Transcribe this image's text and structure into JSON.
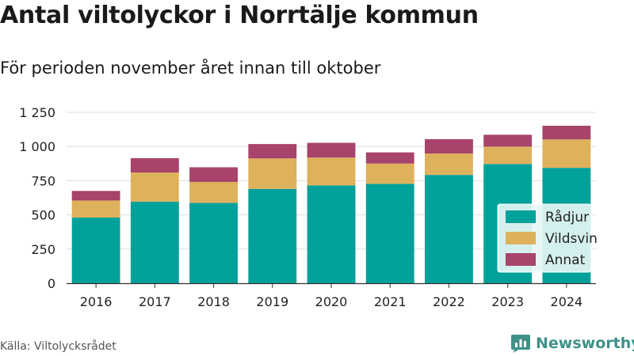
{
  "header": {
    "title": "Antal viltolyckor i Norrtälje kommun",
    "subtitle": "För perioden november året innan till oktober"
  },
  "footer": {
    "source": "Källa: Viltolycksrådet",
    "brand": "Newsworthy",
    "brand_icon": "newsworthy-logo-icon"
  },
  "chart_data": {
    "type": "bar",
    "stacked": true,
    "title": "Antal viltolyckor i Norrtälje kommun",
    "subtitle": "För perioden november året innan till oktober",
    "categories": [
      "2016",
      "2017",
      "2018",
      "2019",
      "2020",
      "2021",
      "2022",
      "2023",
      "2024"
    ],
    "series": [
      {
        "name": "Rådjur",
        "color": "#00a19a",
        "values": [
          480,
          597,
          588,
          690,
          715,
          727,
          792,
          872,
          844
        ]
      },
      {
        "name": "Vildsvin",
        "color": "#deb15c",
        "values": [
          125,
          213,
          153,
          223,
          204,
          148,
          157,
          127,
          208
        ]
      },
      {
        "name": "Annat",
        "color": "#a8436b",
        "values": [
          70,
          105,
          107,
          105,
          108,
          82,
          105,
          87,
          100
        ]
      }
    ],
    "y_ticks": [
      0,
      250,
      500,
      750,
      1000,
      1250
    ],
    "y_tick_labels": [
      "0",
      "250",
      "500",
      "750",
      "1 000",
      "1 250"
    ],
    "ylim": [
      0,
      1250
    ],
    "xlabel": "",
    "ylabel": "",
    "grid": true,
    "legend_position": "right",
    "legend_background": "#e6f6f5"
  }
}
